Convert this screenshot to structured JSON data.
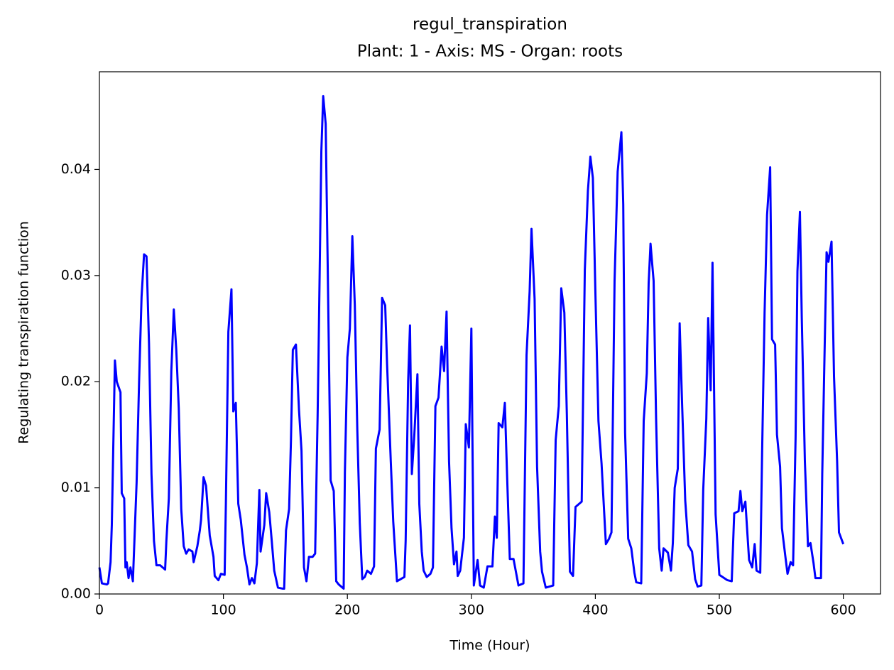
{
  "chart_data": {
    "type": "line",
    "title": "regul_transpiration",
    "subtitle": "Plant: 1 - Axis: MS - Organ: roots",
    "x_label": "Time (Hour)",
    "y_label": "Regulating transpiration function",
    "xlim": [
      0,
      630
    ],
    "ylim": [
      0,
      0.0492
    ],
    "xticks": [
      0,
      100,
      200,
      300,
      400,
      500,
      600
    ],
    "yticks": [
      {
        "value": 0,
        "label": "0.00"
      },
      0.01,
      0.02,
      0.03,
      0.04
    ],
    "grid": false,
    "x": [
      0,
      2,
      6,
      7,
      9,
      10,
      12.5,
      14,
      17,
      18,
      20,
      21,
      22,
      23.5,
      25,
      27,
      30,
      32,
      34,
      36,
      38,
      40,
      42,
      44,
      46,
      49,
      53,
      54,
      56,
      58,
      60,
      62,
      64,
      66,
      68,
      70,
      72,
      75,
      76,
      79,
      81,
      82,
      84,
      86,
      89,
      92,
      93,
      96,
      98,
      101,
      102,
      104,
      106.5,
      108,
      110,
      112,
      114,
      117,
      119,
      121,
      123,
      125,
      127,
      129,
      130,
      133,
      134.5,
      137,
      139,
      141,
      144,
      148,
      149,
      150.5,
      153,
      154.5,
      156,
      158.5,
      161,
      163,
      165,
      167,
      169,
      172,
      174,
      176,
      177,
      179,
      180.5,
      182.5,
      184,
      186.5,
      189,
      191,
      193,
      197,
      198,
      200,
      202,
      204,
      206,
      208,
      210,
      212,
      214,
      216,
      219,
      221.5,
      223,
      226,
      228,
      230.5,
      232,
      235,
      237,
      240,
      243,
      246,
      247,
      249,
      250.5,
      252,
      254,
      256.5,
      258,
      260,
      261.5,
      264,
      267,
      269,
      271,
      273.5,
      276,
      278,
      280,
      282,
      284,
      286,
      288,
      289,
      291,
      294,
      295.5,
      298,
      300,
      302,
      305,
      307,
      310,
      313,
      317,
      319,
      320.5,
      322,
      325,
      327,
      329,
      331,
      334,
      338,
      342,
      344.5,
      347,
      348.5,
      351,
      353,
      355.5,
      357,
      360,
      366,
      368,
      370.5,
      372.5,
      375,
      377,
      379.5,
      382,
      384,
      387,
      389,
      391.5,
      394,
      396,
      398,
      400,
      402.5,
      405,
      408.5,
      411,
      413,
      415.5,
      418,
      421,
      422.5,
      424,
      426.5,
      429,
      431.5,
      433,
      437,
      439,
      441.5,
      443,
      444.5,
      447,
      449,
      451.5,
      453.5,
      455,
      458.5,
      461,
      462.5,
      464,
      466.5,
      468,
      470,
      472.5,
      475,
      478,
      480.5,
      482.5,
      485.5,
      487,
      489.5,
      491,
      493,
      494.5,
      497,
      500,
      506.5,
      510,
      512,
      515.5,
      517,
      518.5,
      521,
      524,
      526.5,
      528.5,
      530,
      533,
      534.5,
      536.5,
      538.5,
      541,
      542.5,
      545,
      546.5,
      549,
      550.5,
      553.5,
      555,
      557.5,
      559.5,
      561.5,
      563,
      565,
      566.5,
      569,
      571.5,
      573.5,
      576,
      577.5,
      582,
      583,
      585,
      586.5,
      588,
      590.5,
      592.5,
      595,
      596.5,
      600
    ],
    "series": [
      {
        "color": "#0000ff",
        "values": [
          0.0025,
          0.001,
          0.0009,
          0.001,
          0.003,
          0.0065,
          0.022,
          0.02,
          0.019,
          0.0095,
          0.009,
          0.0025,
          0.003,
          0.0015,
          0.0025,
          0.0012,
          0.0105,
          0.02,
          0.028,
          0.032,
          0.0318,
          0.0236,
          0.0113,
          0.005,
          0.0027,
          0.0027,
          0.0023,
          0.005,
          0.009,
          0.021,
          0.0268,
          0.023,
          0.0175,
          0.008,
          0.0045,
          0.0038,
          0.0042,
          0.004,
          0.003,
          0.0045,
          0.006,
          0.007,
          0.011,
          0.0102,
          0.0055,
          0.0035,
          0.0017,
          0.0013,
          0.0019,
          0.0018,
          0.0085,
          0.0247,
          0.0287,
          0.0172,
          0.018,
          0.0085,
          0.007,
          0.0037,
          0.0025,
          0.0009,
          0.0015,
          0.001,
          0.0029,
          0.0098,
          0.004,
          0.0065,
          0.0095,
          0.0077,
          0.005,
          0.0022,
          0.0006,
          0.0005,
          0.0005,
          0.006,
          0.008,
          0.0145,
          0.023,
          0.0235,
          0.0173,
          0.0135,
          0.0025,
          0.0012,
          0.0035,
          0.0035,
          0.0038,
          0.0168,
          0.0248,
          0.0417,
          0.0469,
          0.0443,
          0.032,
          0.0107,
          0.0097,
          0.0012,
          0.0009,
          0.0005,
          0.0115,
          0.0223,
          0.025,
          0.0337,
          0.0272,
          0.0155,
          0.0067,
          0.0014,
          0.0016,
          0.0022,
          0.0019,
          0.0026,
          0.0137,
          0.0155,
          0.0279,
          0.0272,
          0.0217,
          0.0125,
          0.0068,
          0.0012,
          0.0014,
          0.0016,
          0.005,
          0.02,
          0.0253,
          0.0113,
          0.015,
          0.0207,
          0.0085,
          0.004,
          0.0022,
          0.0016,
          0.0019,
          0.0025,
          0.0177,
          0.0185,
          0.0233,
          0.021,
          0.0266,
          0.0125,
          0.0062,
          0.0028,
          0.004,
          0.0017,
          0.0022,
          0.0053,
          0.016,
          0.0138,
          0.025,
          0.0008,
          0.0032,
          0.0008,
          0.0006,
          0.0026,
          0.0026,
          0.0073,
          0.0053,
          0.0161,
          0.0157,
          0.018,
          0.0105,
          0.0033,
          0.0033,
          0.0008,
          0.001,
          0.0225,
          0.0285,
          0.0344,
          0.0278,
          0.012,
          0.004,
          0.0021,
          0.0006,
          0.0008,
          0.0145,
          0.0177,
          0.0288,
          0.0265,
          0.017,
          0.0021,
          0.0017,
          0.0082,
          0.0085,
          0.0087,
          0.0305,
          0.038,
          0.0412,
          0.0392,
          0.0286,
          0.0163,
          0.0123,
          0.0047,
          0.0052,
          0.0058,
          0.0295,
          0.0398,
          0.0435,
          0.0367,
          0.0152,
          0.0052,
          0.0043,
          0.002,
          0.0011,
          0.001,
          0.0163,
          0.0208,
          0.0293,
          0.033,
          0.0295,
          0.0165,
          0.0043,
          0.0022,
          0.0043,
          0.0039,
          0.0022,
          0.0048,
          0.01,
          0.0118,
          0.0255,
          0.0178,
          0.0088,
          0.0046,
          0.004,
          0.0014,
          0.0007,
          0.0008,
          0.0098,
          0.0165,
          0.026,
          0.0192,
          0.0312,
          0.0075,
          0.0018,
          0.0013,
          0.0012,
          0.0076,
          0.0078,
          0.0097,
          0.0078,
          0.0087,
          0.0032,
          0.0025,
          0.0047,
          0.0022,
          0.002,
          0.0133,
          0.0265,
          0.0357,
          0.0402,
          0.024,
          0.0235,
          0.015,
          0.012,
          0.0062,
          0.0033,
          0.0019,
          0.003,
          0.0027,
          0.0147,
          0.0304,
          0.036,
          0.026,
          0.0125,
          0.0045,
          0.0048,
          0.0029,
          0.0015,
          0.0015,
          0.0113,
          0.0235,
          0.0322,
          0.0313,
          0.0332,
          0.0205,
          0.0125,
          0.0058,
          0.0047
        ]
      }
    ]
  }
}
